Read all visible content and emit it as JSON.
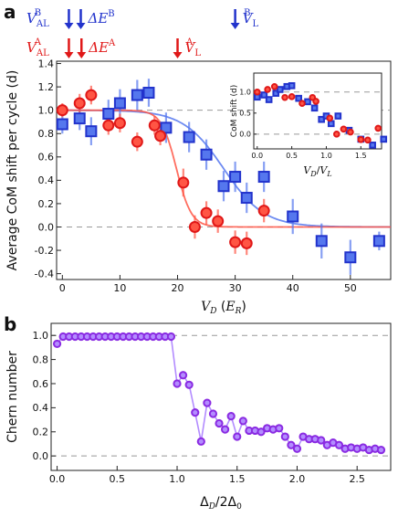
{
  "figure": {
    "panel_a_label": "a",
    "panel_b_label": "b",
    "markers": {
      "blue": [
        "V",
        "AL",
        "B",
        "ΔE",
        "B",
        "V",
        "L",
        "B"
      ],
      "red": [
        "V",
        "AL",
        "A",
        "ΔE",
        "A",
        "V",
        "L",
        "A"
      ]
    },
    "colors": {
      "blue": "#2233cc",
      "red": "#e01818",
      "blue_fill": "#5577ee",
      "red_fill": "#ff5544",
      "purple": "#8a2be2",
      "purple_fill": "#b38cff"
    }
  },
  "chart_data": [
    {
      "type": "scatter",
      "panel": "a",
      "xlabel": "V_D (E_R)",
      "ylabel": "Average CoM shift per cycle (d)",
      "xlim": [
        -1,
        57
      ],
      "ylim": [
        -0.45,
        1.42
      ],
      "xticks": [
        "0",
        "10",
        "20",
        "30",
        "40",
        "50"
      ],
      "yticks": [
        "-0.4",
        "-0.2",
        "0.0",
        "0.2",
        "0.4",
        "0.6",
        "0.8",
        "1.0",
        "1.2",
        "1.4"
      ],
      "reference_lines": [
        0.0,
        1.0
      ],
      "arrows_blue": [
        {
          "x": 0.5,
          "label": "V_AL^B"
        },
        {
          "x": 3.2,
          "label": "ΔE^B"
        },
        {
          "x": 30.0,
          "label": "V_L^B"
        }
      ],
      "arrows_red": [
        {
          "x": 0.5,
          "label": "V_AL^A"
        },
        {
          "x": 3.0,
          "label": "ΔE^A"
        },
        {
          "x": 20.0,
          "label": "V_L^A"
        }
      ],
      "series": [
        {
          "color": "blue",
          "marker": "square",
          "x": [
            0,
            3,
            5,
            8,
            10,
            13,
            15,
            18,
            22,
            25,
            28,
            30,
            32,
            35,
            40,
            45,
            50,
            55
          ],
          "y": [
            0.88,
            0.93,
            0.82,
            0.97,
            1.06,
            1.13,
            1.15,
            0.85,
            0.77,
            0.62,
            0.35,
            0.43,
            0.25,
            0.43,
            0.09,
            -0.12,
            -0.26,
            -0.12
          ],
          "err": [
            0.08,
            0.1,
            0.12,
            0.12,
            0.12,
            0.13,
            0.12,
            0.13,
            0.13,
            0.13,
            0.13,
            0.13,
            0.13,
            0.13,
            0.15,
            0.15,
            0.15,
            0.08
          ],
          "fit": {
            "amp": 1.0,
            "center": 28.0,
            "width": 3.5
          }
        },
        {
          "color": "red",
          "marker": "circle",
          "x": [
            0,
            3,
            5,
            8,
            10,
            13,
            16,
            17,
            21,
            23,
            25,
            27,
            30,
            32,
            35
          ],
          "y": [
            1.0,
            1.06,
            1.13,
            0.87,
            0.89,
            0.73,
            0.87,
            0.78,
            0.38,
            0.0,
            0.12,
            0.05,
            -0.13,
            -0.14,
            0.14
          ],
          "err": [
            0.06,
            0.08,
            0.08,
            0.08,
            0.08,
            0.08,
            0.08,
            0.08,
            0.12,
            0.1,
            0.1,
            0.1,
            0.1,
            0.1,
            0.1
          ],
          "fit": {
            "amp": 1.0,
            "center": 19.8,
            "width": 1.3
          }
        }
      ]
    },
    {
      "type": "scatter",
      "panel": "a-inset",
      "xlabel": "V_D/V_L",
      "ylabel": "CoM shift (d)",
      "xlim": [
        -0.05,
        1.8
      ],
      "ylim": [
        -0.35,
        1.45
      ],
      "xticks": [
        "0.0",
        "0.5",
        "1.0",
        "1.5"
      ],
      "yticks": [
        "0.0",
        "0.5",
        "1.0"
      ],
      "reference_lines": [
        0.0,
        1.0
      ],
      "series": [
        {
          "color": "blue",
          "marker": "square",
          "x": [
            0.0,
            0.1,
            0.17,
            0.27,
            0.33,
            0.43,
            0.5,
            0.6,
            0.73,
            0.83,
            0.93,
            1.0,
            1.07,
            1.17,
            1.33,
            1.5,
            1.67,
            1.83
          ],
          "y": [
            0.88,
            0.93,
            0.82,
            0.97,
            1.06,
            1.13,
            1.15,
            0.85,
            0.77,
            0.62,
            0.35,
            0.43,
            0.25,
            0.43,
            0.09,
            -0.12,
            -0.26,
            -0.12
          ]
        },
        {
          "color": "red",
          "marker": "circle",
          "x": [
            0.0,
            0.15,
            0.25,
            0.4,
            0.5,
            0.65,
            0.8,
            0.85,
            1.05,
            1.15,
            1.25,
            1.35,
            1.5,
            1.6,
            1.75
          ],
          "y": [
            1.0,
            1.06,
            1.13,
            0.87,
            0.89,
            0.73,
            0.87,
            0.78,
            0.38,
            0.0,
            0.12,
            0.05,
            -0.13,
            -0.14,
            0.14
          ]
        }
      ]
    },
    {
      "type": "line",
      "panel": "b",
      "xlabel": "Δ_D/2Δ_0",
      "ylabel": "Chern number",
      "xlim": [
        -0.05,
        2.78
      ],
      "ylim": [
        -0.12,
        1.1
      ],
      "xticks": [
        "0.0",
        "0.5",
        "1.0",
        "1.5",
        "2.0",
        "2.5"
      ],
      "yticks": [
        "0.0",
        "0.2",
        "0.4",
        "0.6",
        "0.8",
        "1.0"
      ],
      "reference_lines": [
        0.0,
        1.0
      ],
      "series": [
        {
          "color": "purple",
          "marker": "circle",
          "x": [
            0.0,
            0.05,
            0.1,
            0.15,
            0.2,
            0.25,
            0.3,
            0.35,
            0.4,
            0.45,
            0.5,
            0.55,
            0.6,
            0.65,
            0.7,
            0.75,
            0.8,
            0.85,
            0.9,
            0.95,
            1.0,
            1.05,
            1.1,
            1.15,
            1.2,
            1.25,
            1.3,
            1.35,
            1.4,
            1.45,
            1.5,
            1.55,
            1.6,
            1.65,
            1.7,
            1.75,
            1.8,
            1.85,
            1.9,
            1.95,
            2.0,
            2.05,
            2.1,
            2.15,
            2.2,
            2.25,
            2.3,
            2.35,
            2.4,
            2.45,
            2.5,
            2.55,
            2.6,
            2.65,
            2.7
          ],
          "y": [
            0.93,
            0.99,
            0.99,
            0.99,
            0.99,
            0.99,
            0.99,
            0.99,
            0.99,
            0.99,
            0.99,
            0.99,
            0.99,
            0.99,
            0.99,
            0.99,
            0.99,
            0.99,
            0.99,
            0.99,
            0.6,
            0.67,
            0.59,
            0.36,
            0.12,
            0.44,
            0.35,
            0.27,
            0.22,
            0.33,
            0.16,
            0.29,
            0.21,
            0.21,
            0.2,
            0.23,
            0.22,
            0.23,
            0.16,
            0.09,
            0.06,
            0.16,
            0.14,
            0.14,
            0.13,
            0.09,
            0.11,
            0.09,
            0.06,
            0.07,
            0.06,
            0.07,
            0.05,
            0.06,
            0.05
          ]
        }
      ]
    }
  ]
}
